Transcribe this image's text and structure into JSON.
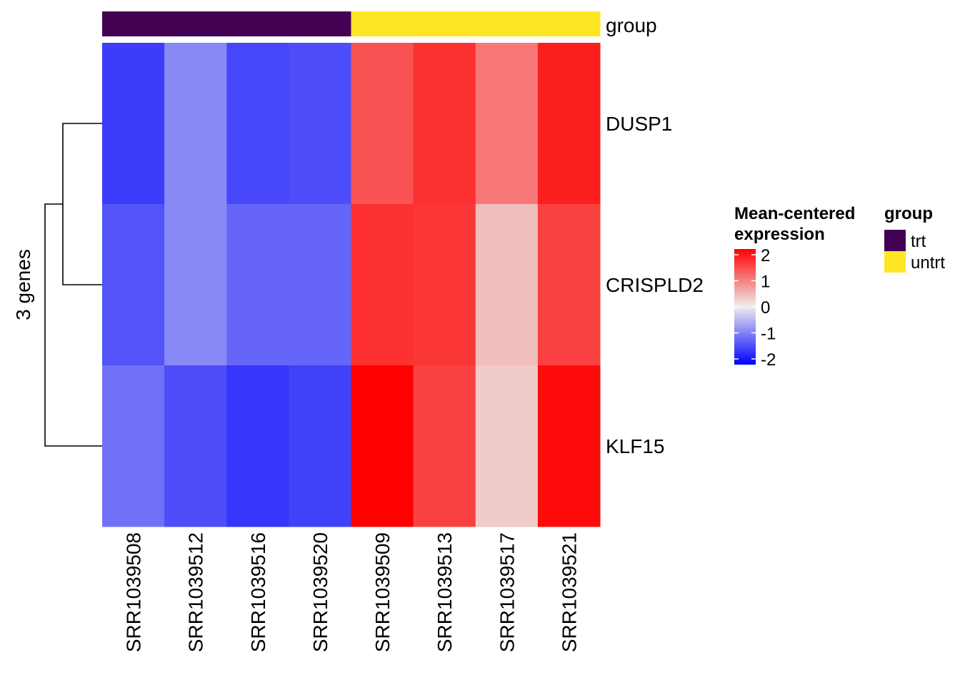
{
  "chart_data": {
    "type": "heatmap",
    "row_title": "3 genes",
    "rows": [
      "DUSP1",
      "CRISPLD2",
      "KLF15"
    ],
    "columns": [
      "SRR1039508",
      "SRR1039512",
      "SRR1039516",
      "SRR1039520",
      "SRR1039509",
      "SRR1039513",
      "SRR1039517",
      "SRR1039521"
    ],
    "values": [
      [
        -1.5,
        -0.85,
        -1.4,
        -1.35,
        1.3,
        1.6,
        1.0,
        1.75
      ],
      [
        -1.3,
        -0.85,
        -1.15,
        -1.15,
        1.6,
        1.55,
        0.4,
        1.45
      ],
      [
        -1.05,
        -1.35,
        -1.55,
        -1.45,
        2.0,
        1.45,
        0.3,
        1.9
      ]
    ],
    "annotation": {
      "name": "group",
      "values": [
        "trt",
        "trt",
        "trt",
        "trt",
        "untrt",
        "untrt",
        "untrt",
        "untrt"
      ],
      "colors": {
        "trt": "#440154",
        "untrt": "#FDE725"
      }
    },
    "color_scale": {
      "title_line1": "Mean-centered",
      "title_line2": "expression",
      "min": -2,
      "max": 2,
      "stops": [
        {
          "value": -2,
          "color": "#0000FF"
        },
        {
          "value": 0,
          "color": "#EEEEEE"
        },
        {
          "value": 2,
          "color": "#FF0000"
        }
      ],
      "ticks": [
        "2",
        "1",
        "0",
        "-1",
        "-2"
      ]
    },
    "dendrogram": {
      "rows_clustered": true,
      "merges": [
        [
          "DUSP1",
          "CRISPLD2"
        ],
        [
          "DUSP1+CRISPLD2",
          "KLF15"
        ]
      ]
    },
    "group_legend": {
      "title": "group",
      "entries": [
        "trt",
        "untrt"
      ]
    }
  }
}
